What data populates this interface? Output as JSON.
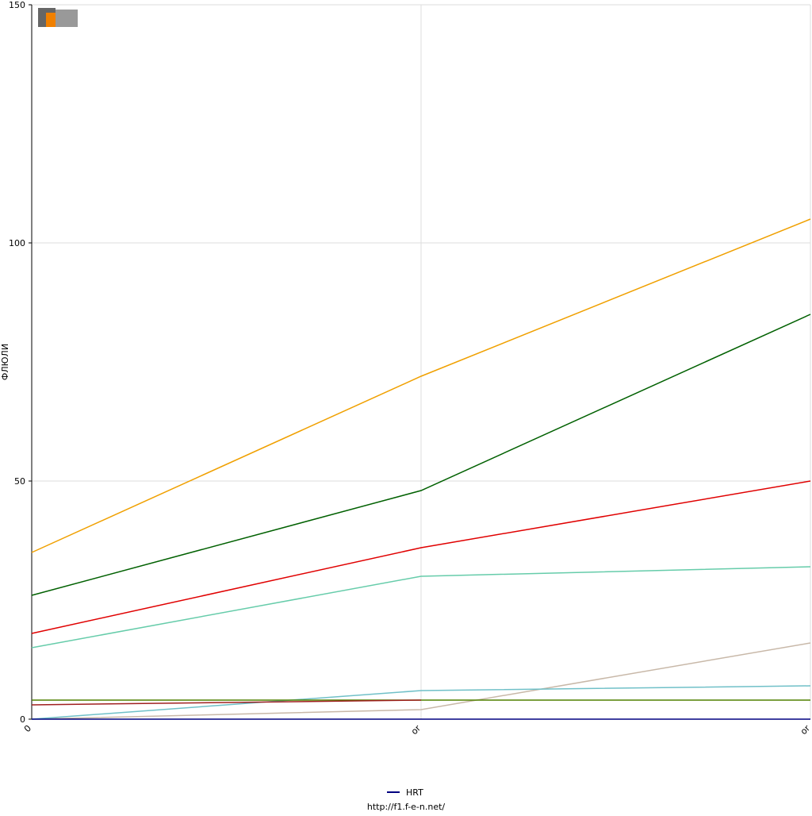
{
  "chart_data": {
    "type": "line",
    "y_label": "ФЛЮЛИ",
    "categories": [
      "0",
      "or",
      "or"
    ],
    "ylim": [
      0,
      150
    ],
    "yticks": [
      0,
      50,
      100,
      150
    ],
    "grid": true,
    "legend": "bottom",
    "footer": "http://f1.f-e-n.net/",
    "series": [
      {
        "color": "#f0a000",
        "values": [
          35,
          72,
          105
        ]
      },
      {
        "color": "#006000",
        "values": [
          26,
          48,
          85
        ]
      },
      {
        "color": "#e00000",
        "values": [
          18,
          36,
          50
        ]
      },
      {
        "color": "#66ccaa",
        "values": [
          15,
          30,
          32
        ]
      },
      {
        "color": "#c8b8a8",
        "values": [
          0,
          2,
          16
        ]
      },
      {
        "color": "#70c0c8",
        "values": [
          0,
          6,
          7
        ]
      },
      {
        "color": "#508000",
        "values": [
          4,
          4,
          4
        ]
      },
      {
        "color": "#a02020",
        "values": [
          3,
          4,
          null
        ]
      },
      {
        "name": "HRT",
        "color": "#000080",
        "values": [
          0,
          0,
          0
        ]
      }
    ]
  }
}
